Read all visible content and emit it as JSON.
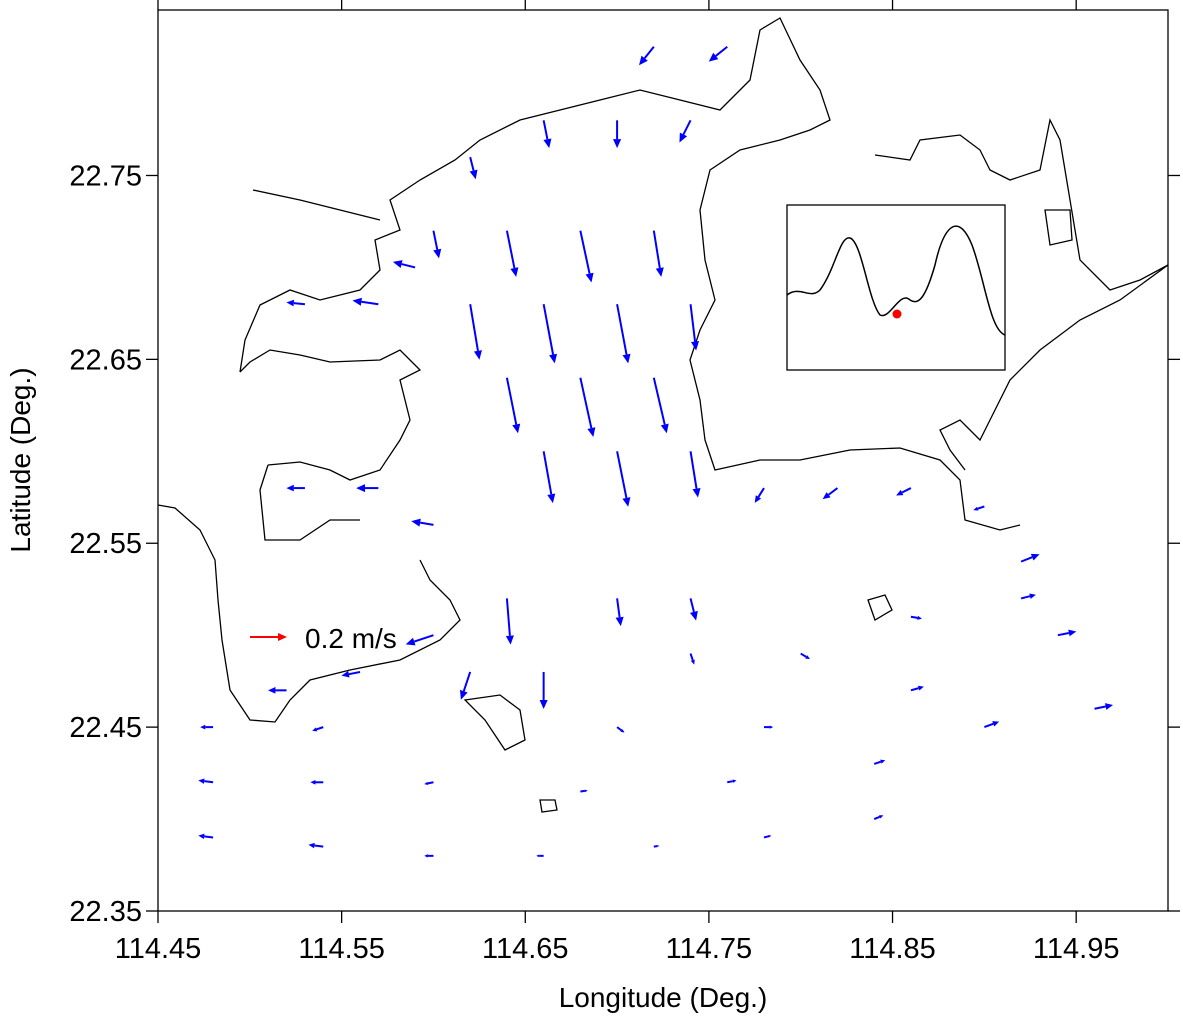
{
  "chart_data": {
    "type": "quiver",
    "xlabel": "Longitude (Deg.)",
    "ylabel": "Latitude (Deg.)",
    "xlim": [
      114.45,
      115.0
    ],
    "ylim": [
      22.35,
      22.84
    ],
    "xticks": [
      114.45,
      114.55,
      114.65,
      114.75,
      114.85,
      114.95
    ],
    "yticks": [
      22.35,
      22.45,
      22.55,
      22.65,
      22.75
    ],
    "color": "#0000ff",
    "reference": {
      "value": 0.2,
      "label": "0.2 m/s",
      "color": "#ff0000"
    },
    "x": [
      114.72,
      114.76,
      114.7,
      114.66,
      114.62,
      114.74,
      114.6,
      114.64,
      114.68,
      114.72,
      114.62,
      114.66,
      114.7,
      114.74,
      114.64,
      114.68,
      114.72,
      114.66,
      114.7,
      114.74,
      114.53,
      114.57,
      114.59,
      114.53,
      114.57,
      114.6,
      114.6,
      114.56,
      114.52,
      114.64,
      114.66,
      114.62,
      114.7,
      114.74,
      114.78,
      114.82,
      114.86,
      114.9,
      114.92,
      114.48,
      114.54,
      114.6,
      114.66,
      114.72,
      114.78,
      114.84,
      114.48,
      114.54,
      114.6,
      114.68,
      114.76,
      114.84,
      114.9,
      114.96,
      114.48,
      114.54,
      114.7,
      114.78,
      114.86,
      114.94,
      114.74,
      114.8,
      114.86,
      114.92
    ],
    "y": [
      22.82,
      22.82,
      22.78,
      22.78,
      22.76,
      22.78,
      22.72,
      22.72,
      22.72,
      22.72,
      22.68,
      22.68,
      22.68,
      22.68,
      22.64,
      22.64,
      22.64,
      22.6,
      22.6,
      22.6,
      22.68,
      22.68,
      22.7,
      22.58,
      22.58,
      22.56,
      22.5,
      22.48,
      22.47,
      22.52,
      22.48,
      22.48,
      22.52,
      22.52,
      22.58,
      22.58,
      22.58,
      22.57,
      22.54,
      22.39,
      22.385,
      22.38,
      22.38,
      22.385,
      22.39,
      22.4,
      22.42,
      22.42,
      22.42,
      22.415,
      22.42,
      22.43,
      22.45,
      22.46,
      22.45,
      22.45,
      22.45,
      22.45,
      22.47,
      22.5,
      22.49,
      22.49,
      22.51,
      22.52
    ],
    "u": [
      -0.08,
      -0.1,
      0.0,
      0.03,
      0.03,
      -0.06,
      0.03,
      0.05,
      0.06,
      0.04,
      0.05,
      0.06,
      0.06,
      0.03,
      0.06,
      0.07,
      0.07,
      0.05,
      0.06,
      0.04,
      -0.1,
      -0.14,
      -0.12,
      -0.1,
      -0.12,
      -0.12,
      -0.15,
      -0.1,
      -0.1,
      0.02,
      0.0,
      -0.05,
      0.02,
      0.03,
      -0.05,
      -0.08,
      -0.08,
      -0.06,
      0.1,
      -0.08,
      -0.08,
      -0.05,
      -0.04,
      0.03,
      0.04,
      0.05,
      -0.08,
      -0.07,
      -0.05,
      0.04,
      0.05,
      0.06,
      0.08,
      0.1,
      -0.07,
      -0.06,
      0.04,
      0.05,
      0.07,
      0.1,
      0.02,
      0.05,
      0.06,
      0.08
    ],
    "v": [
      -0.1,
      -0.08,
      -0.15,
      -0.15,
      -0.12,
      -0.12,
      -0.15,
      -0.25,
      -0.28,
      -0.25,
      -0.3,
      -0.32,
      -0.32,
      -0.25,
      -0.3,
      -0.32,
      -0.3,
      -0.28,
      -0.3,
      -0.25,
      0.01,
      0.02,
      0.03,
      0.0,
      0.0,
      0.02,
      -0.05,
      -0.02,
      0.0,
      -0.25,
      -0.2,
      -0.15,
      -0.15,
      -0.12,
      -0.08,
      -0.06,
      -0.04,
      -0.02,
      0.04,
      0.01,
      0.01,
      0.0,
      0.0,
      0.005,
      0.01,
      0.02,
      0.01,
      0.0,
      -0.01,
      0.005,
      0.01,
      0.02,
      0.03,
      0.02,
      0.0,
      -0.02,
      -0.03,
      0.0,
      0.02,
      0.02,
      -0.06,
      -0.03,
      -0.01,
      0.02
    ]
  }
}
